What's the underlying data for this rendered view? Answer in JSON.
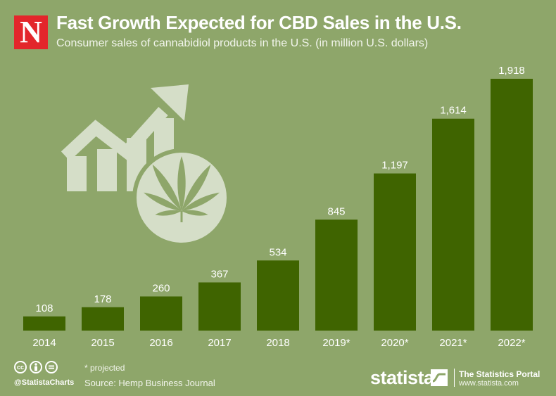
{
  "logo_letter": "N",
  "title": "Fast Growth Expected for CBD Sales in the U.S.",
  "subtitle": "Consumer sales of cannabidiol products in the U.S. (in million U.S. dollars)",
  "colors": {
    "background": "#8ea66a",
    "bar": "#3f6400",
    "logo": "#e3262b",
    "illustration": "#d5dec8"
  },
  "chart_data": {
    "type": "bar",
    "categories": [
      "2014",
      "2015",
      "2016",
      "2017",
      "2018",
      "2019*",
      "2020*",
      "2021*",
      "2022*"
    ],
    "values": [
      108,
      178,
      260,
      367,
      534,
      845,
      1197,
      1614,
      1918
    ],
    "value_labels": [
      "108",
      "178",
      "260",
      "367",
      "534",
      "845",
      "1,197",
      "1,614",
      "1,918"
    ],
    "title": "Fast Growth Expected for CBD Sales in the U.S.",
    "xlabel": "",
    "ylabel": "",
    "ylim": [
      0,
      1918
    ],
    "grid": false,
    "legend": "none"
  },
  "footer": {
    "handle": "@StatistaCharts",
    "note": "* projected",
    "source": "Source: Hemp Business Journal",
    "brand": "statista",
    "portal_name": "The Statistics Portal",
    "portal_url": "www.statista.com"
  },
  "icons": [
    "cc-icon",
    "attribution-icon",
    "no-derivatives-icon",
    "growth-arrow-icon",
    "cannabis-leaf-icon",
    "statista-mark-icon"
  ]
}
